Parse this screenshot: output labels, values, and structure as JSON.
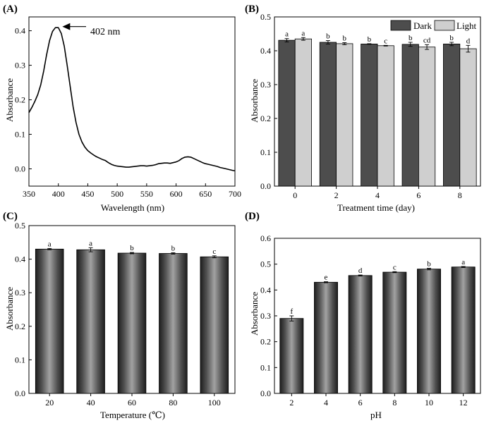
{
  "chart_data": [
    {
      "id": "A",
      "panel_label": "(A)",
      "type": "line",
      "xlabel": "Wavelength (nm)",
      "ylabel": "Absorbance",
      "xlim": [
        350,
        700
      ],
      "ylim": [
        -0.05,
        0.44
      ],
      "xticks": [
        350,
        400,
        450,
        500,
        550,
        600,
        650,
        700
      ],
      "yticks": [
        0.0,
        0.1,
        0.2,
        0.3,
        0.4
      ],
      "annotation": "402 nm",
      "annotation_x": 402,
      "annotation_y": 0.41,
      "x": [
        350,
        355,
        360,
        365,
        370,
        375,
        380,
        385,
        390,
        395,
        400,
        405,
        410,
        415,
        420,
        425,
        430,
        435,
        440,
        445,
        450,
        455,
        460,
        465,
        470,
        475,
        480,
        485,
        490,
        495,
        500,
        505,
        510,
        515,
        520,
        525,
        530,
        535,
        540,
        545,
        550,
        555,
        560,
        565,
        570,
        575,
        580,
        585,
        590,
        595,
        600,
        605,
        610,
        615,
        620,
        625,
        630,
        635,
        640,
        645,
        650,
        655,
        660,
        665,
        670,
        675,
        680,
        685,
        690,
        695,
        700
      ],
      "y": [
        0.163,
        0.178,
        0.195,
        0.215,
        0.243,
        0.283,
        0.33,
        0.371,
        0.398,
        0.409,
        0.409,
        0.392,
        0.355,
        0.3,
        0.24,
        0.18,
        0.135,
        0.1,
        0.078,
        0.063,
        0.053,
        0.046,
        0.04,
        0.035,
        0.031,
        0.027,
        0.024,
        0.018,
        0.013,
        0.01,
        0.008,
        0.007,
        0.006,
        0.005,
        0.005,
        0.006,
        0.007,
        0.008,
        0.009,
        0.009,
        0.008,
        0.009,
        0.01,
        0.012,
        0.015,
        0.016,
        0.017,
        0.017,
        0.016,
        0.018,
        0.02,
        0.024,
        0.03,
        0.034,
        0.035,
        0.034,
        0.03,
        0.026,
        0.022,
        0.018,
        0.015,
        0.013,
        0.011,
        0.009,
        0.007,
        0.004,
        0.002,
        0.0,
        -0.002,
        -0.004,
        -0.006
      ]
    },
    {
      "id": "B",
      "panel_label": "(B)",
      "type": "bar",
      "xlabel": "Treatment time (day)",
      "ylabel": "Absorbance",
      "categories": [
        "0",
        "2",
        "4",
        "6",
        "8"
      ],
      "ylim": [
        0.0,
        0.5
      ],
      "yticks": [
        0.0,
        0.1,
        0.2,
        0.3,
        0.4,
        0.5
      ],
      "legend_position": "top-right",
      "series": [
        {
          "name": "Dark",
          "color": "#4d4d4d",
          "values": [
            0.431,
            0.425,
            0.42,
            0.419,
            0.42
          ],
          "errors": [
            0.005,
            0.005,
            0.001,
            0.006,
            0.005
          ],
          "letters": [
            "a",
            "b",
            "b",
            "b",
            "b"
          ]
        },
        {
          "name": "Light",
          "color": "#cfcfcf",
          "values": [
            0.435,
            0.421,
            0.415,
            0.411,
            0.406
          ],
          "errors": [
            0.004,
            0.003,
            0.001,
            0.007,
            0.01
          ],
          "letters": [
            "a",
            "b",
            "c",
            "cd",
            "d"
          ]
        }
      ]
    },
    {
      "id": "C",
      "panel_label": "(C)",
      "type": "bar",
      "xlabel": "Temperature (℃)",
      "ylabel": "Absorbance",
      "categories": [
        "20",
        "40",
        "60",
        "80",
        "100"
      ],
      "ylim": [
        0.0,
        0.5
      ],
      "yticks": [
        0.0,
        0.1,
        0.2,
        0.3,
        0.4,
        0.5
      ],
      "series": [
        {
          "name": "Absorbance",
          "values": [
            0.43,
            0.428,
            0.418,
            0.417,
            0.407
          ],
          "errors": [
            0.002,
            0.006,
            0.002,
            0.002,
            0.003
          ],
          "letters": [
            "a",
            "a",
            "b",
            "b",
            "c"
          ]
        }
      ]
    },
    {
      "id": "D",
      "panel_label": "(D)",
      "type": "bar",
      "xlabel": "pH",
      "ylabel": "Absorbance",
      "categories": [
        "2",
        "4",
        "6",
        "8",
        "10",
        "12"
      ],
      "ylim": [
        0.0,
        0.6
      ],
      "yticks": [
        0.0,
        0.1,
        0.2,
        0.3,
        0.4,
        0.5,
        0.6
      ],
      "series": [
        {
          "name": "Absorbance",
          "values": [
            0.29,
            0.43,
            0.456,
            0.469,
            0.481,
            0.489
          ],
          "errors": [
            0.01,
            0.002,
            0.002,
            0.002,
            0.003,
            0.002
          ],
          "letters": [
            "f",
            "e",
            "d",
            "c",
            "b",
            "a"
          ]
        }
      ]
    }
  ]
}
